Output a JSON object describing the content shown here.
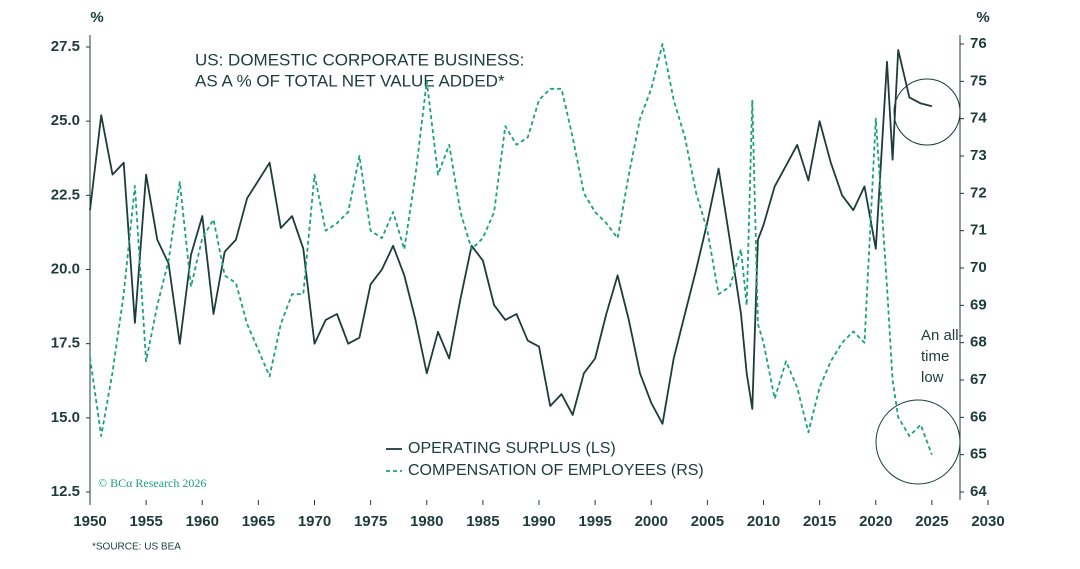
{
  "chart_data": {
    "type": "line",
    "title": [
      "US: DOMESTIC CORPORATE BUSINESS:",
      "AS A % OF TOTAL NET VALUE ADDED*"
    ],
    "y_label": "%",
    "y2_label": "%",
    "annotation": [
      "An all-",
      "time",
      "low"
    ],
    "source": "*SOURCE: US BEA",
    "watermark": "© BCα Research 2026",
    "x": [
      1950,
      1951,
      1952,
      1953,
      1954,
      1955,
      1956,
      1957,
      1958,
      1959,
      1960,
      1961,
      1962,
      1963,
      1964,
      1965,
      1966,
      1967,
      1968,
      1969,
      1970,
      1971,
      1972,
      1973,
      1974,
      1975,
      1976,
      1977,
      1978,
      1979,
      1980,
      1981,
      1982,
      1983,
      1984,
      1985,
      1986,
      1987,
      1988,
      1989,
      1990,
      1991,
      1992,
      1993,
      1994,
      1995,
      1996,
      1997,
      1998,
      1999,
      2000,
      2001,
      2002,
      2003,
      2004,
      2005,
      2006,
      2007,
      2008,
      2008.5,
      2009,
      2009.5,
      2010,
      2011,
      2012,
      2013,
      2014,
      2015,
      2016,
      2017,
      2018,
      2019,
      2020,
      2021,
      2021.5,
      2022,
      2023,
      2024,
      2025
    ],
    "series": [
      {
        "name": "OPERATING SURPLUS (LS)",
        "color": "#1d3c3a",
        "dash": false,
        "axis": "y",
        "values": [
          22.0,
          25.2,
          23.2,
          23.6,
          18.2,
          23.2,
          21.0,
          20.2,
          17.5,
          20.5,
          21.8,
          18.5,
          20.6,
          21.0,
          22.4,
          23.0,
          23.6,
          21.4,
          21.8,
          20.7,
          17.5,
          18.3,
          18.5,
          17.5,
          17.7,
          19.5,
          20.0,
          20.8,
          19.8,
          18.3,
          16.5,
          17.9,
          17.0,
          19.0,
          20.8,
          20.3,
          18.8,
          18.3,
          18.5,
          17.6,
          17.4,
          15.4,
          15.8,
          15.1,
          16.5,
          17.0,
          18.5,
          19.8,
          18.3,
          16.5,
          15.5,
          14.8,
          17.0,
          18.5,
          20.0,
          21.6,
          23.4,
          21.0,
          18.5,
          16.5,
          15.3,
          21.0,
          21.5,
          22.8,
          23.5,
          24.2,
          23.0,
          25.0,
          23.6,
          22.5,
          22.0,
          22.8,
          20.7,
          27.0,
          23.7,
          27.4,
          25.8,
          25.6,
          25.5
        ]
      },
      {
        "name": "COMPENSATION OF EMPLOYEES (RS)",
        "color": "#1aa37a",
        "dash": true,
        "axis": "y2",
        "values": [
          67.6,
          65.5,
          67.2,
          69.3,
          72.2,
          67.5,
          69.0,
          70.2,
          72.3,
          69.5,
          70.8,
          71.3,
          69.8,
          69.6,
          68.5,
          67.8,
          67.1,
          68.5,
          69.3,
          69.3,
          72.5,
          71.0,
          71.2,
          71.5,
          73.0,
          71.0,
          70.8,
          71.5,
          70.5,
          72.5,
          75.0,
          72.5,
          73.3,
          71.5,
          70.5,
          70.8,
          71.5,
          73.8,
          73.3,
          73.5,
          74.5,
          74.8,
          74.8,
          73.5,
          72.0,
          71.5,
          71.2,
          70.8,
          72.5,
          74.0,
          74.8,
          76.0,
          74.5,
          73.5,
          72.0,
          71.0,
          69.3,
          69.5,
          70.5,
          69.0,
          74.5,
          68.5,
          68.0,
          66.5,
          67.5,
          66.8,
          65.6,
          66.8,
          67.5,
          68.0,
          68.3,
          68.0,
          74.0,
          69.5,
          67.0,
          66.0,
          65.5,
          65.8,
          65.0
        ]
      }
    ],
    "xlim": [
      1950,
      2030
    ],
    "xticks": [
      1950,
      1955,
      1960,
      1965,
      1970,
      1975,
      1980,
      1985,
      1990,
      1995,
      2000,
      2005,
      2010,
      2015,
      2020,
      2025,
      2030
    ],
    "ylim": [
      12.5,
      27.5
    ],
    "yticks": [
      {
        "value": 12.5,
        "label": "12.5"
      },
      {
        "value": 15,
        "label": "15.0"
      },
      17.5,
      {
        "value": 20,
        "label": "20.0"
      },
      22.5,
      {
        "value": 25,
        "label": "25.0"
      },
      27.5
    ],
    "y2lim": [
      64,
      76
    ],
    "y2ticks": [
      64,
      65,
      66,
      67,
      68,
      69,
      70,
      71,
      72,
      73,
      74,
      75,
      76
    ],
    "grid": false
  }
}
